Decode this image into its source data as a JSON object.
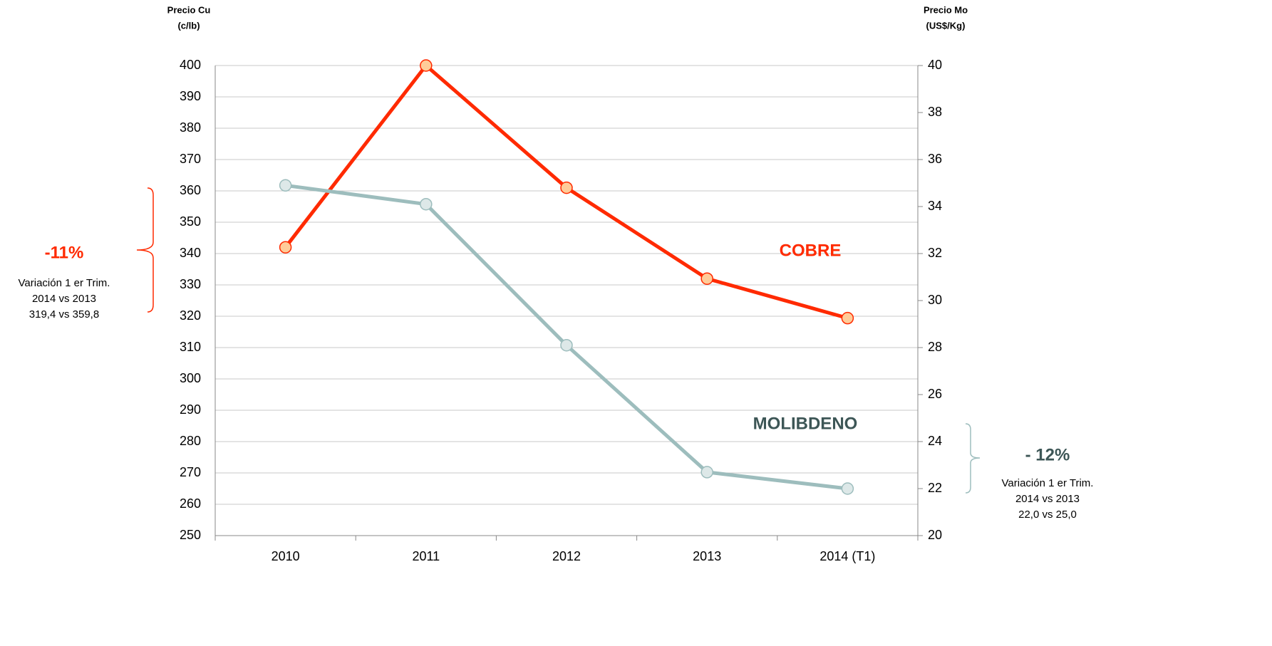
{
  "chart_data": {
    "type": "line",
    "y_title": [
      "Precio Cu",
      "(c/lb)"
    ],
    "y2_title": [
      "Precio Mo",
      "(US$/Kg)"
    ],
    "categories": [
      "2010",
      "2011",
      "2012",
      "2013",
      "2014 (T1)"
    ],
    "series": [
      {
        "name": "COBRE",
        "color": "#ff2a00",
        "marker_color": "#ffcc99",
        "values": [
          342,
          400,
          361,
          332,
          319.4
        ]
      },
      {
        "name": "MOLIBDENO",
        "color": "#9dbdbd",
        "marker_color": "#dde8e8",
        "label_color": "#3d5656",
        "axis": "y2",
        "values": [
          34.9,
          34.1,
          28.1,
          22.7,
          22.0
        ]
      }
    ],
    "ylim": [
      250,
      400
    ],
    "yticks": [
      250,
      260,
      270,
      280,
      290,
      300,
      310,
      320,
      330,
      340,
      350,
      360,
      370,
      380,
      390,
      400
    ],
    "y2lim": [
      20,
      40
    ],
    "y2ticks": [
      20,
      22,
      24,
      26,
      28,
      30,
      32,
      34,
      36,
      38,
      40
    ],
    "grid": true,
    "annotations": [
      {
        "text": "-11%",
        "color": "#ff2a00",
        "note": [
          "Variación 1 er Trim.",
          "2014 vs 2013",
          "319,4 vs 359,8"
        ]
      },
      {
        "text": "- 12%",
        "color": "#3d5656",
        "note": [
          "Variación 1 er Trim.",
          "2014 vs 2013",
          "22,0 vs 25,0"
        ]
      }
    ]
  }
}
